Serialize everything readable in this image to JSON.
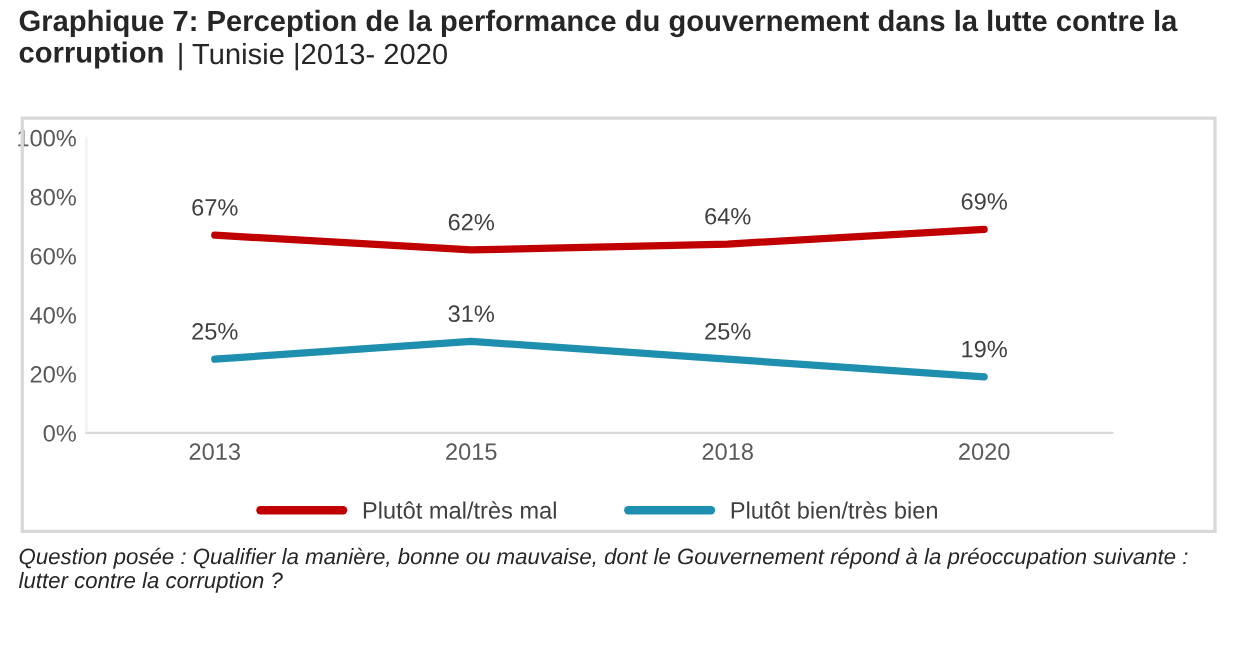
{
  "chart_data": {
    "type": "line",
    "title": "Graphique 7: Perception de la performance du gouvernement dans la lutte contre la corruption",
    "subtitle": "| Tunisie |2013- 2020",
    "categories": [
      "2013",
      "2015",
      "2018",
      "2020"
    ],
    "series": [
      {
        "name": "Plutôt mal/très mal",
        "color": "#c00000",
        "values": [
          67,
          62,
          64,
          69
        ],
        "value_labels": [
          "67%",
          "62%",
          "64%",
          "69%"
        ]
      },
      {
        "name": "Plutôt bien/très bien",
        "color": "#1f8fb0",
        "values": [
          25,
          31,
          25,
          19
        ],
        "value_labels": [
          "25%",
          "31%",
          "25%",
          "19%"
        ]
      }
    ],
    "ylim": [
      0,
      100
    ],
    "yticks": [
      {
        "value": 0,
        "label": "0%"
      },
      {
        "value": 20,
        "label": "20%"
      },
      {
        "value": 40,
        "label": "40%"
      },
      {
        "value": 60,
        "label": "60%"
      },
      {
        "value": 80,
        "label": "80%"
      },
      {
        "value": 100,
        "label": "100%"
      }
    ],
    "grid": false,
    "legend": "bottom",
    "marker": "none",
    "line_style": "solid",
    "annotations": [
      "Question posée : Qualifier la manière, bonne ou mauvaise, dont le Gouvernement répond à la préoccupation suivante : lutter contre la corruption ?"
    ]
  }
}
